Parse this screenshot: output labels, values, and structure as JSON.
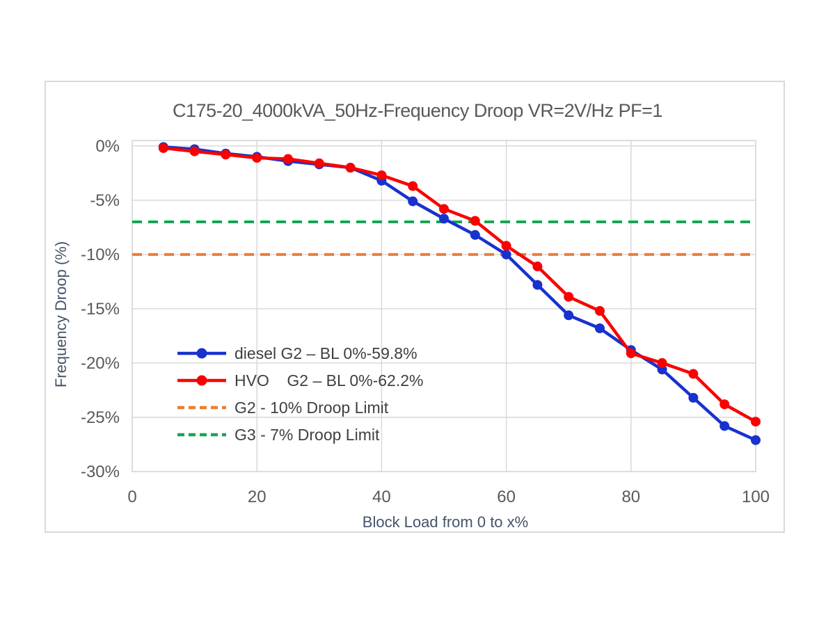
{
  "chart_data": {
    "type": "line",
    "title": "C175-20_4000kVA_50Hz-Frequency Droop VR=2V/Hz PF=1",
    "xlabel": "Block Load from 0 to x%",
    "ylabel": "Frequency Droop (%)",
    "xlim": [
      0,
      100
    ],
    "ylim": [
      -30,
      0.5
    ],
    "grid": true,
    "legend_position": "inside-left-lower",
    "x_ticks": [
      0,
      20,
      40,
      60,
      80,
      100
    ],
    "y_tick_values": [
      0,
      -5,
      -10,
      -15,
      -20,
      -25,
      -30
    ],
    "y_tick_labels": [
      "0%",
      "-5%",
      "-10%",
      "-15%",
      "-20%",
      "-25%",
      "-30%"
    ],
    "x": [
      5,
      10,
      15,
      20,
      25,
      30,
      35,
      40,
      45,
      50,
      55,
      60,
      65,
      70,
      75,
      80,
      85,
      90,
      95,
      100
    ],
    "series": [
      {
        "name": "diesel G2 – BL 0%-59.8%",
        "kind": "line",
        "marker": "circle",
        "color": "#1832cf",
        "values": [
          -0.1,
          -0.3,
          -0.7,
          -1.0,
          -1.4,
          -1.7,
          -2.0,
          -3.2,
          -5.1,
          -6.7,
          -8.2,
          -10.0,
          -12.8,
          -15.6,
          -16.8,
          -18.8,
          -20.6,
          -23.2,
          -25.8,
          -27.1
        ]
      },
      {
        "name": "HVO    G2 – BL 0%-62.2%",
        "kind": "line",
        "marker": "circle",
        "color": "#fa0000",
        "values": [
          -0.2,
          -0.5,
          -0.8,
          -1.1,
          -1.2,
          -1.6,
          -2.0,
          -2.7,
          -3.7,
          -5.8,
          -6.9,
          -9.2,
          -11.1,
          -13.9,
          -15.2,
          -19.1,
          -20.0,
          -21.0,
          -23.8,
          -25.4
        ]
      },
      {
        "name": "G2 - 10% Droop Limit",
        "kind": "hline",
        "dash": true,
        "color": "#ed7d31",
        "value": -10
      },
      {
        "name": "G3 - 7% Droop Limit",
        "kind": "hline",
        "dash": true,
        "color": "#16a653",
        "value": -7
      }
    ],
    "colors": {
      "gridline": "#d9d9d9",
      "plot_border": "#d2d2d2",
      "tick_text": "#595959",
      "title_text": "#595959",
      "axis_title_text": "#44546a",
      "legend_text": "#404040"
    }
  }
}
